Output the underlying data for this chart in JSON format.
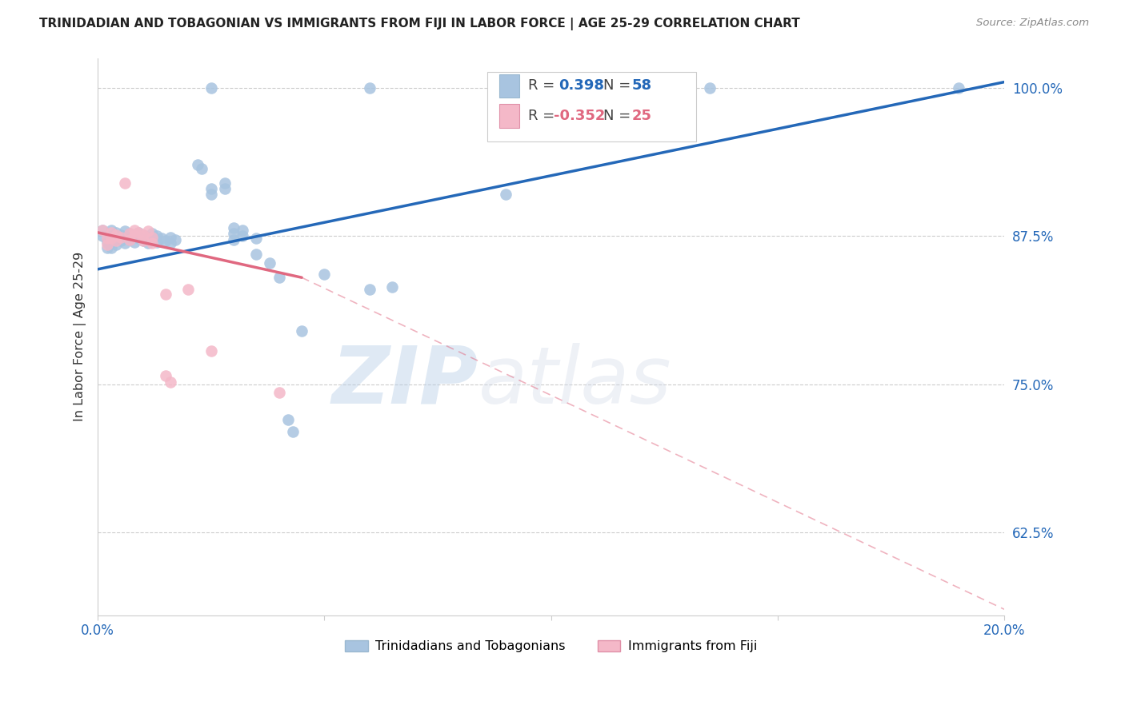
{
  "title": "TRINIDADIAN AND TOBAGONIAN VS IMMIGRANTS FROM FIJI IN LABOR FORCE | AGE 25-29 CORRELATION CHART",
  "source": "Source: ZipAtlas.com",
  "ylabel": "In Labor Force | Age 25-29",
  "xlim": [
    0.0,
    0.2
  ],
  "ylim": [
    0.555,
    1.025
  ],
  "yticks": [
    0.625,
    0.75,
    0.875,
    1.0
  ],
  "ytick_labels": [
    "62.5%",
    "75.0%",
    "87.5%",
    "100.0%"
  ],
  "xticks": [
    0.0,
    0.05,
    0.1,
    0.15,
    0.2
  ],
  "xtick_labels": [
    "0.0%",
    "",
    "",
    "",
    "20.0%"
  ],
  "blue_R": 0.398,
  "blue_N": 58,
  "pink_R": -0.352,
  "pink_N": 25,
  "blue_color": "#a8c4e0",
  "pink_color": "#f4b8c8",
  "blue_line_color": "#2468b8",
  "pink_line_color": "#e06880",
  "blue_scatter": [
    [
      0.001,
      0.88
    ],
    [
      0.001,
      0.875
    ],
    [
      0.002,
      0.87
    ],
    [
      0.002,
      0.865
    ],
    [
      0.003,
      0.88
    ],
    [
      0.003,
      0.875
    ],
    [
      0.003,
      0.87
    ],
    [
      0.003,
      0.865
    ],
    [
      0.004,
      0.878
    ],
    [
      0.004,
      0.873
    ],
    [
      0.004,
      0.868
    ],
    [
      0.005,
      0.876
    ],
    [
      0.005,
      0.871
    ],
    [
      0.006,
      0.879
    ],
    [
      0.006,
      0.874
    ],
    [
      0.006,
      0.869
    ],
    [
      0.007,
      0.877
    ],
    [
      0.007,
      0.872
    ],
    [
      0.008,
      0.875
    ],
    [
      0.008,
      0.87
    ],
    [
      0.009,
      0.878
    ],
    [
      0.009,
      0.873
    ],
    [
      0.01,
      0.876
    ],
    [
      0.01,
      0.871
    ],
    [
      0.011,
      0.874
    ],
    [
      0.011,
      0.869
    ],
    [
      0.012,
      0.877
    ],
    [
      0.012,
      0.872
    ],
    [
      0.013,
      0.875
    ],
    [
      0.013,
      0.87
    ],
    [
      0.014,
      0.873
    ],
    [
      0.015,
      0.871
    ],
    [
      0.016,
      0.874
    ],
    [
      0.016,
      0.869
    ],
    [
      0.017,
      0.872
    ],
    [
      0.022,
      0.935
    ],
    [
      0.023,
      0.932
    ],
    [
      0.025,
      0.915
    ],
    [
      0.025,
      0.91
    ],
    [
      0.028,
      0.92
    ],
    [
      0.028,
      0.915
    ],
    [
      0.03,
      0.882
    ],
    [
      0.03,
      0.877
    ],
    [
      0.03,
      0.872
    ],
    [
      0.032,
      0.88
    ],
    [
      0.032,
      0.875
    ],
    [
      0.035,
      0.873
    ],
    [
      0.035,
      0.86
    ],
    [
      0.038,
      0.852
    ],
    [
      0.04,
      0.84
    ],
    [
      0.042,
      0.72
    ],
    [
      0.043,
      0.71
    ],
    [
      0.045,
      0.795
    ],
    [
      0.05,
      0.843
    ],
    [
      0.06,
      0.83
    ],
    [
      0.065,
      0.832
    ],
    [
      0.09,
      0.91
    ],
    [
      0.13,
      1.0
    ],
    [
      0.135,
      1.0
    ],
    [
      0.19,
      1.0
    ]
  ],
  "blue_top_points": [
    [
      0.025,
      1.0
    ],
    [
      0.06,
      1.0
    ],
    [
      0.09,
      1.0
    ],
    [
      0.105,
      1.0
    ]
  ],
  "pink_scatter": [
    [
      0.001,
      0.88
    ],
    [
      0.002,
      0.873
    ],
    [
      0.002,
      0.868
    ],
    [
      0.003,
      0.878
    ],
    [
      0.003,
      0.873
    ],
    [
      0.004,
      0.876
    ],
    [
      0.004,
      0.871
    ],
    [
      0.005,
      0.874
    ],
    [
      0.006,
      0.92
    ],
    [
      0.007,
      0.877
    ],
    [
      0.007,
      0.872
    ],
    [
      0.008,
      0.88
    ],
    [
      0.008,
      0.875
    ],
    [
      0.009,
      0.878
    ],
    [
      0.01,
      0.876
    ],
    [
      0.01,
      0.871
    ],
    [
      0.011,
      0.879
    ],
    [
      0.012,
      0.874
    ],
    [
      0.012,
      0.869
    ],
    [
      0.015,
      0.826
    ],
    [
      0.015,
      0.757
    ],
    [
      0.016,
      0.752
    ],
    [
      0.02,
      0.83
    ],
    [
      0.025,
      0.778
    ],
    [
      0.04,
      0.743
    ]
  ],
  "blue_line": [
    [
      0.0,
      0.847
    ],
    [
      0.2,
      1.005
    ]
  ],
  "pink_line_solid": [
    [
      0.0,
      0.878
    ],
    [
      0.045,
      0.84
    ]
  ],
  "pink_line_dashed": [
    [
      0.045,
      0.84
    ],
    [
      0.2,
      0.56
    ]
  ],
  "watermark_zip": "ZIP",
  "watermark_atlas": "atlas",
  "background_color": "#ffffff",
  "grid_color": "#cccccc",
  "legend_label1": "Trinidadians and Tobagonians",
  "legend_label2": "Immigrants from Fiji"
}
